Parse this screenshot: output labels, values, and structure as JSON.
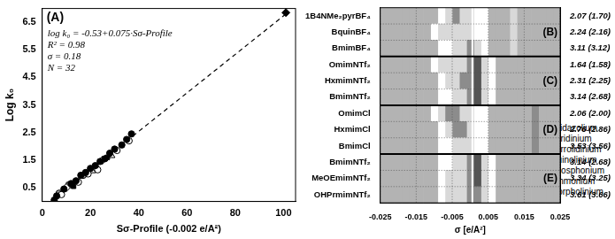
{
  "chart_data": [
    {
      "type": "scatter",
      "x_label": "Sσ-Profile (-0.002 e/A²)",
      "y_label": "Log k₀",
      "xlim": [
        0,
        105
      ],
      "xticks": [
        0,
        20,
        40,
        60,
        80,
        100
      ],
      "ylim": [
        0,
        7
      ],
      "yticks": [
        0.5,
        1.5,
        2.5,
        3.5,
        4.5,
        5.5,
        6.5
      ],
      "grid": false,
      "legend": "lower right",
      "annotations": [
        "(A)",
        "log k₀ = -0.53+0.075·Sσ-Profile",
        "R² = 0.98",
        "σ = 0.18",
        "N = 32"
      ],
      "fit": {
        "x": [
          4,
          102
        ],
        "values": [
          0.03,
          6.87
        ],
        "line_style": "dashed"
      },
      "series": [
        {
          "name": "Imidazolium",
          "color": "#000000",
          "marker": "circle",
          "x": [
            5,
            6,
            9,
            12,
            14,
            16,
            18,
            20,
            22,
            24,
            26,
            28,
            30,
            33,
            35,
            37
          ],
          "values": [
            0.05,
            0.2,
            0.45,
            0.65,
            0.75,
            0.95,
            1.05,
            1.2,
            1.3,
            1.45,
            1.55,
            1.75,
            1.9,
            2.05,
            2.25,
            2.45
          ]
        },
        {
          "name": "Pyridinium",
          "color": "#ffffff",
          "marker": "circle",
          "x": [
            8,
            15,
            19,
            23,
            31,
            36
          ],
          "values": [
            0.25,
            0.7,
            1.0,
            1.15,
            1.85,
            2.2
          ]
        },
        {
          "name": "Pyrrolidinium",
          "color": "#000000",
          "marker": "square",
          "x": [
            13,
            27
          ],
          "values": [
            0.55,
            1.6
          ]
        },
        {
          "name": "Quinolinium",
          "color": "#ffffff",
          "marker": "triangle",
          "x": [
            21,
            29
          ],
          "values": [
            1.1,
            1.65
          ]
        },
        {
          "name": "Phosphonium",
          "color": "#000000",
          "marker": "diamond",
          "x": [
            101
          ],
          "values": [
            6.85
          ]
        },
        {
          "name": "Ammonium",
          "color": "#ffffff",
          "marker": "diamond",
          "x": [
            10,
            25
          ],
          "values": [
            0.5,
            1.5
          ]
        },
        {
          "name": "Morpholinium",
          "color": "#999999",
          "marker": "circle",
          "x": [
            7,
            11,
            17
          ],
          "values": [
            0.3,
            0.6,
            0.95
          ]
        }
      ]
    },
    {
      "type": "heatmap",
      "x_label": "σ [e/A²]",
      "xlim": [
        -0.025,
        0.025
      ],
      "xticks": [
        -0.025,
        -0.015,
        -0.005,
        0.005,
        0.015,
        0.025
      ],
      "grid": true,
      "vline": 0.0006,
      "bins": [
        -0.025,
        -0.023,
        -0.021,
        -0.019,
        -0.017,
        -0.015,
        -0.013,
        -0.011,
        -0.009,
        -0.007,
        -0.005,
        -0.003,
        -0.001,
        0.001,
        0.003,
        0.005,
        0.007,
        0.009,
        0.011,
        0.013,
        0.015,
        0.017,
        0.019,
        0.021,
        0.023,
        0.025
      ],
      "groups": [
        {
          "label": "(B)",
          "rows": [
            {
              "name": "1B4NMe₂pyrBF₄",
              "value_label": "2.07 (1.70)",
              "cells": [
                0,
                0,
                0,
                0,
                0,
                0,
                0,
                0,
                1,
                2,
                3,
                2,
                2,
                1,
                1,
                0,
                0,
                0,
                2,
                0,
                0,
                0,
                0,
                0,
                0
              ]
            },
            {
              "name": "BquinBF₄",
              "value_label": "2.24 (2.16)",
              "cells": [
                0,
                0,
                0,
                0,
                0,
                0,
                0,
                1,
                2,
                2,
                2,
                2,
                2,
                1,
                1,
                0,
                0,
                0,
                2,
                0,
                0,
                0,
                0,
                0,
                0
              ]
            },
            {
              "name": "BmimBF₄",
              "value_label": "3.11 (3.12)",
              "cells": [
                0,
                0,
                0,
                0,
                0,
                0,
                0,
                0,
                1,
                1,
                2,
                2,
                3,
                2,
                1,
                0,
                0,
                0,
                2,
                0,
                0,
                0,
                0,
                0,
                0
              ]
            }
          ]
        },
        {
          "label": "(C)",
          "rows": [
            {
              "name": "OmimNTf₂",
              "value_label": "1.64 (1.58)",
              "cells": [
                0,
                0,
                0,
                0,
                0,
                0,
                0,
                1,
                2,
                2,
                2,
                2,
                3,
                4,
                2,
                1,
                0,
                0,
                0,
                0,
                0,
                0,
                0,
                0,
                0
              ]
            },
            {
              "name": "HxmimNTf₂",
              "value_label": "2.31 (2.25)",
              "cells": [
                0,
                0,
                0,
                0,
                0,
                0,
                0,
                0,
                1,
                2,
                2,
                3,
                3,
                4,
                2,
                1,
                0,
                0,
                0,
                0,
                0,
                0,
                0,
                0,
                0
              ]
            },
            {
              "name": "BmimNTf₂",
              "value_label": "3.14 (2.68)",
              "cells": [
                0,
                0,
                0,
                0,
                0,
                0,
                0,
                0,
                1,
                1,
                2,
                2,
                3,
                4,
                2,
                1,
                0,
                0,
                0,
                0,
                0,
                0,
                0,
                0,
                0
              ]
            }
          ]
        },
        {
          "label": "(D)",
          "rows": [
            {
              "name": "OmimCl",
              "value_label": "2.06 (2.00)",
              "cells": [
                0,
                0,
                0,
                0,
                0,
                0,
                0,
                1,
                2,
                3,
                3,
                2,
                2,
                1,
                1,
                0,
                0,
                0,
                0,
                0,
                0,
                3,
                0,
                0,
                0
              ]
            },
            {
              "name": "HxmimCl",
              "value_label": "2.76 (2.86)",
              "cells": [
                0,
                0,
                0,
                0,
                0,
                0,
                0,
                0,
                1,
                2,
                3,
                3,
                2,
                1,
                1,
                0,
                0,
                0,
                0,
                0,
                0,
                3,
                0,
                0,
                0
              ]
            },
            {
              "name": "BmimCl",
              "value_label": "3.53 (3.56)",
              "cells": [
                0,
                0,
                0,
                0,
                0,
                0,
                0,
                0,
                1,
                1,
                2,
                2,
                2,
                1,
                1,
                0,
                0,
                0,
                0,
                0,
                0,
                3,
                0,
                0,
                0
              ]
            }
          ]
        },
        {
          "label": "(E)",
          "rows": [
            {
              "name": "BmimNTf₂",
              "value_label": "3.14 (2.68)",
              "cells": [
                0,
                0,
                0,
                0,
                0,
                0,
                0,
                0,
                1,
                1,
                2,
                2,
                3,
                4,
                2,
                1,
                0,
                0,
                0,
                0,
                0,
                0,
                0,
                0,
                0
              ]
            },
            {
              "name": "MeOEmimNTf₂",
              "value_label": "3.34 (3.25)",
              "cells": [
                0,
                0,
                0,
                0,
                0,
                0,
                0,
                0,
                1,
                2,
                2,
                2,
                3,
                4,
                2,
                1,
                0,
                0,
                0,
                0,
                0,
                0,
                0,
                0,
                0
              ]
            },
            {
              "name": "OHPrmimNTf₂",
              "value_label": "3.61 (3.66)",
              "cells": [
                0,
                0,
                0,
                0,
                0,
                0,
                0,
                0,
                1,
                2,
                2,
                2,
                3,
                3,
                2,
                1,
                0,
                0,
                0,
                0,
                0,
                0,
                0,
                0,
                0
              ]
            }
          ]
        }
      ]
    }
  ]
}
